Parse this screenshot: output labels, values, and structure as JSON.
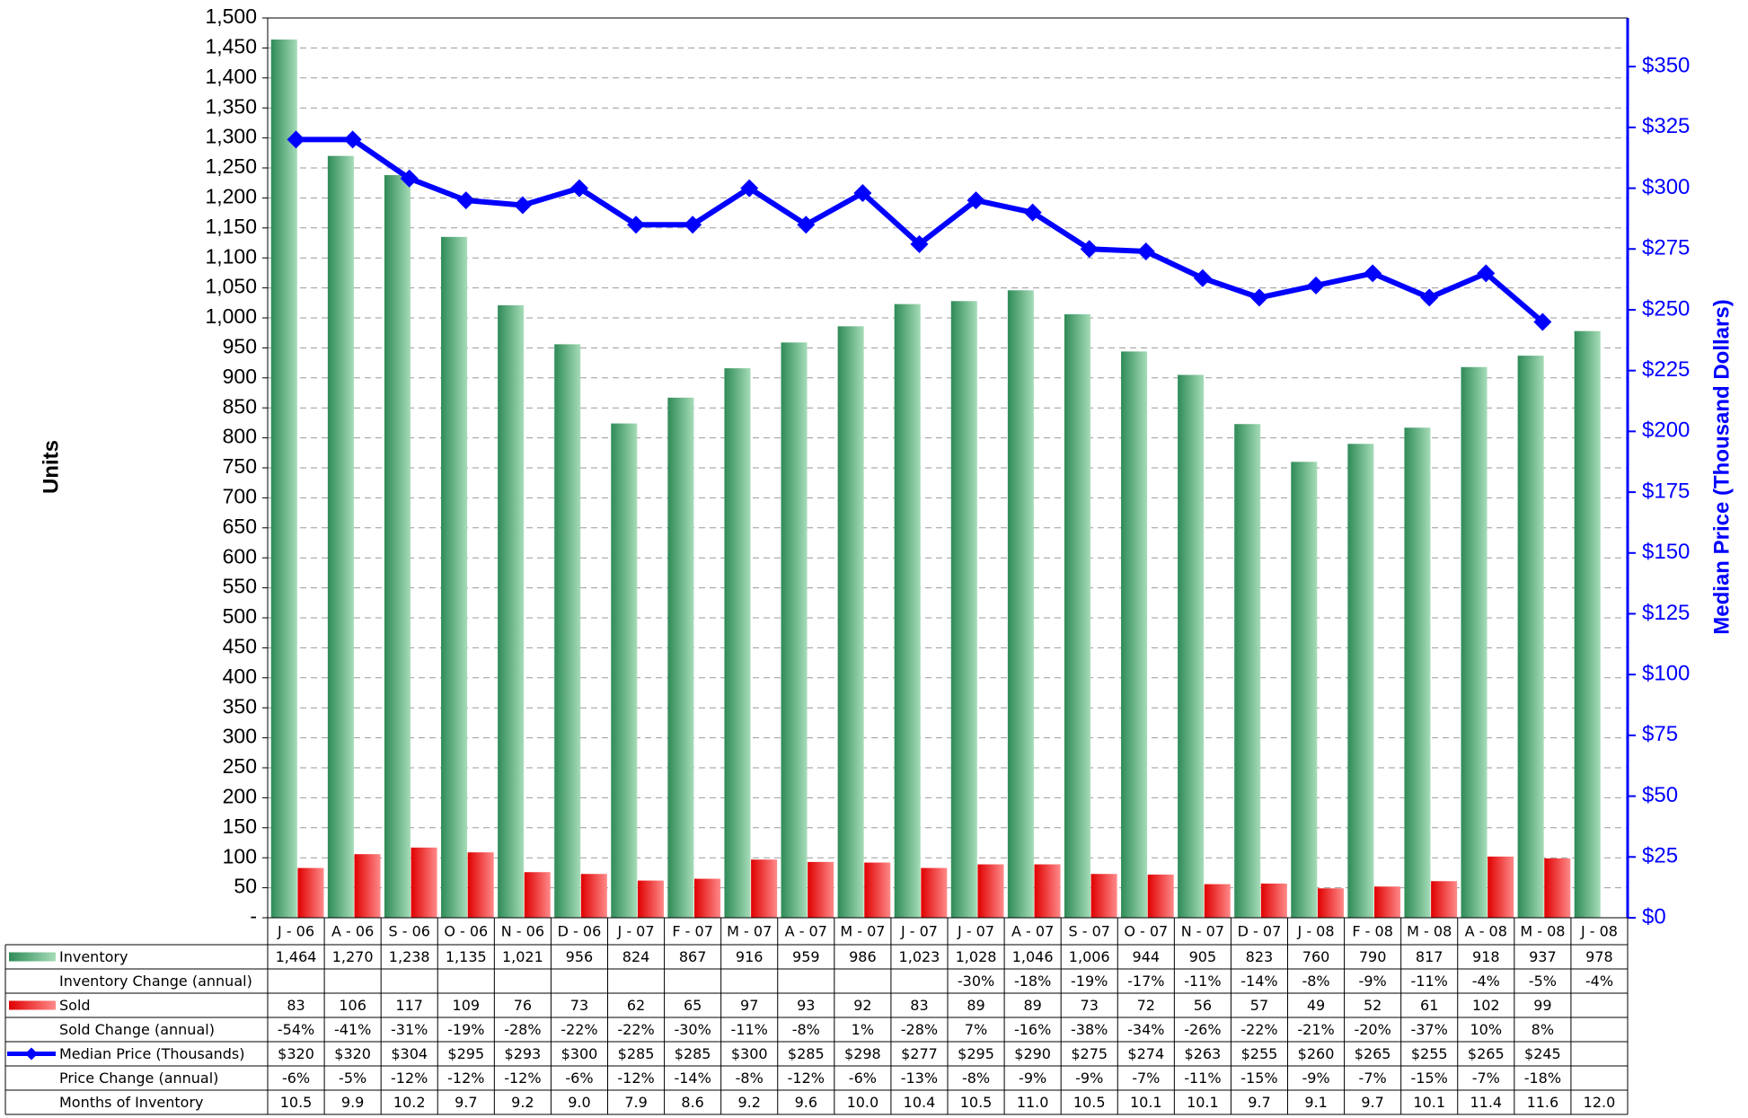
{
  "chart_data": {
    "type": "bar",
    "y_label": "Units",
    "y2_label": "Median Price (Thousand Dollars)",
    "categories": [
      "J - 06",
      "A - 06",
      "S - 06",
      "O - 06",
      "N - 06",
      "D - 06",
      "J - 07",
      "F - 07",
      "M - 07",
      "A - 07",
      "M - 07",
      "J - 07",
      "J - 07",
      "A - 07",
      "S - 07",
      "O - 07",
      "N - 07",
      "D - 07",
      "J - 08",
      "F - 08",
      "M - 08",
      "A - 08",
      "M - 08",
      "J - 08"
    ],
    "ylim": [
      0,
      1500
    ],
    "yticks": [
      {
        "value": 0,
        "label": "-"
      },
      50,
      100,
      150,
      200,
      250,
      300,
      350,
      400,
      450,
      500,
      550,
      600,
      650,
      700,
      750,
      800,
      850,
      900,
      950,
      {
        "value": 1000,
        "label": "1,000"
      },
      {
        "value": 1050,
        "label": "1,050"
      },
      {
        "value": 1100,
        "label": "1,100"
      },
      {
        "value": 1150,
        "label": "1,150"
      },
      {
        "value": 1200,
        "label": "1,200"
      },
      {
        "value": 1250,
        "label": "1,250"
      },
      {
        "value": 1300,
        "label": "1,300"
      },
      {
        "value": 1350,
        "label": "1,350"
      },
      {
        "value": 1400,
        "label": "1,400"
      },
      {
        "value": 1450,
        "label": "1,450"
      },
      {
        "value": 1500,
        "label": "1,500"
      }
    ],
    "y2lim": [
      0,
      370
    ],
    "y2ticks": [
      {
        "value": 0,
        "label": "$0"
      },
      {
        "value": 25,
        "label": "$25"
      },
      {
        "value": 50,
        "label": "$50"
      },
      {
        "value": 75,
        "label": "$75"
      },
      {
        "value": 100,
        "label": "$100"
      },
      {
        "value": 125,
        "label": "$125"
      },
      {
        "value": 150,
        "label": "$150"
      },
      {
        "value": 175,
        "label": "$175"
      },
      {
        "value": 200,
        "label": "$200"
      },
      {
        "value": 225,
        "label": "$225"
      },
      {
        "value": 250,
        "label": "$250"
      },
      {
        "value": 275,
        "label": "$275"
      },
      {
        "value": 300,
        "label": "$300"
      },
      {
        "value": 325,
        "label": "$325"
      },
      {
        "value": 350,
        "label": "$350"
      }
    ],
    "grid": true,
    "series": [
      {
        "name": "Inventory",
        "color": "#3a9a68",
        "type": "bar",
        "values": [
          1464,
          1270,
          1238,
          1135,
          1021,
          956,
          824,
          867,
          916,
          959,
          986,
          1023,
          1028,
          1046,
          1006,
          944,
          905,
          823,
          760,
          790,
          817,
          918,
          937,
          978
        ],
        "value_labels": [
          "1,464",
          "1,270",
          "1,238",
          "1,135",
          "1,021",
          "956",
          "824",
          "867",
          "916",
          "959",
          "986",
          "1,023",
          "1,028",
          "1,046",
          "1,006",
          "944",
          "905",
          "823",
          "760",
          "790",
          "817",
          "918",
          "937",
          "978"
        ]
      },
      {
        "name": "Sold",
        "color": "#ee2222",
        "type": "bar",
        "values": [
          83,
          106,
          117,
          109,
          76,
          73,
          62,
          65,
          97,
          93,
          92,
          83,
          89,
          89,
          73,
          72,
          56,
          57,
          49,
          52,
          61,
          102,
          99,
          null
        ],
        "value_labels": [
          "83",
          "106",
          "117",
          "109",
          "76",
          "73",
          "62",
          "65",
          "97",
          "93",
          "92",
          "83",
          "89",
          "89",
          "73",
          "72",
          "56",
          "57",
          "49",
          "52",
          "61",
          "102",
          "99",
          null
        ]
      },
      {
        "name": "Median Price (Thousands)",
        "color": "#0000ff",
        "type": "line",
        "axis": "y2",
        "values": [
          320,
          320,
          304,
          295,
          293,
          300,
          285,
          285,
          300,
          285,
          298,
          277,
          295,
          290,
          275,
          274,
          263,
          255,
          260,
          265,
          255,
          265,
          245,
          null
        ],
        "value_labels": [
          "$320",
          "$320",
          "$304",
          "$295",
          "$293",
          "$300",
          "$285",
          "$285",
          "$300",
          "$285",
          "$298",
          "$277",
          "$295",
          "$290",
          "$275",
          "$274",
          "$263",
          "$255",
          "$260",
          "$265",
          "$255",
          "$265",
          "$245",
          null
        ]
      }
    ],
    "table": [
      {
        "name": "Inventory Change (annual)",
        "values": [
          null,
          null,
          null,
          null,
          null,
          null,
          null,
          null,
          null,
          null,
          null,
          null,
          -30,
          -18,
          -19,
          -17,
          -11,
          -14,
          -8,
          -9,
          -11,
          -4,
          -5,
          -4
        ],
        "value_labels": [
          null,
          null,
          null,
          null,
          null,
          null,
          null,
          null,
          null,
          null,
          null,
          null,
          "-30%",
          "-18%",
          "-19%",
          "-17%",
          "-11%",
          "-14%",
          "-8%",
          "-9%",
          "-11%",
          "-4%",
          "-5%",
          "-4%"
        ]
      },
      {
        "name": "Sold Change (annual)",
        "values": [
          -54,
          -41,
          -31,
          -19,
          -28,
          -22,
          -22,
          -30,
          -11,
          -8,
          1,
          -28,
          7,
          -16,
          -38,
          -34,
          -26,
          -22,
          -21,
          -20,
          -37,
          10,
          8,
          null
        ],
        "value_labels": [
          "-54%",
          "-41%",
          "-31%",
          "-19%",
          "-28%",
          "-22%",
          "-22%",
          "-30%",
          "-11%",
          "-8%",
          "1%",
          "-28%",
          "7%",
          "-16%",
          "-38%",
          "-34%",
          "-26%",
          "-22%",
          "-21%",
          "-20%",
          "-37%",
          "10%",
          "8%",
          null
        ]
      },
      {
        "name": "Price Change (annual)",
        "values": [
          -6,
          -5,
          -12,
          -12,
          -12,
          -6,
          -12,
          -14,
          -8,
          -12,
          -6,
          -13,
          -8,
          -9,
          -9,
          -7,
          -11,
          -15,
          -9,
          -7,
          -15,
          -7,
          -18,
          null
        ],
        "value_labels": [
          "-6%",
          "-5%",
          "-12%",
          "-12%",
          "-12%",
          "-6%",
          "-12%",
          "-14%",
          "-8%",
          "-12%",
          "-6%",
          "-13%",
          "-8%",
          "-9%",
          "-9%",
          "-7%",
          "-11%",
          "-15%",
          "-9%",
          "-7%",
          "-15%",
          "-7%",
          "-18%",
          null
        ]
      },
      {
        "name": "Months of Inventory",
        "values": [
          10.5,
          9.9,
          10.2,
          9.7,
          9.2,
          9.0,
          7.9,
          8.6,
          9.2,
          9.6,
          10.0,
          10.4,
          10.5,
          11.0,
          10.5,
          10.1,
          10.1,
          9.7,
          9.1,
          9.7,
          10.1,
          11.4,
          11.6,
          12.0
        ],
        "value_labels": [
          "10.5",
          "9.9",
          "10.2",
          "9.7",
          "9.2",
          "9.0",
          "7.9",
          "8.6",
          "9.2",
          "9.6",
          "10.0",
          "10.4",
          "10.5",
          "11.0",
          "10.5",
          "10.1",
          "10.1",
          "9.7",
          "9.1",
          "9.7",
          "10.1",
          "11.4",
          "11.6",
          "12.0"
        ]
      }
    ]
  }
}
